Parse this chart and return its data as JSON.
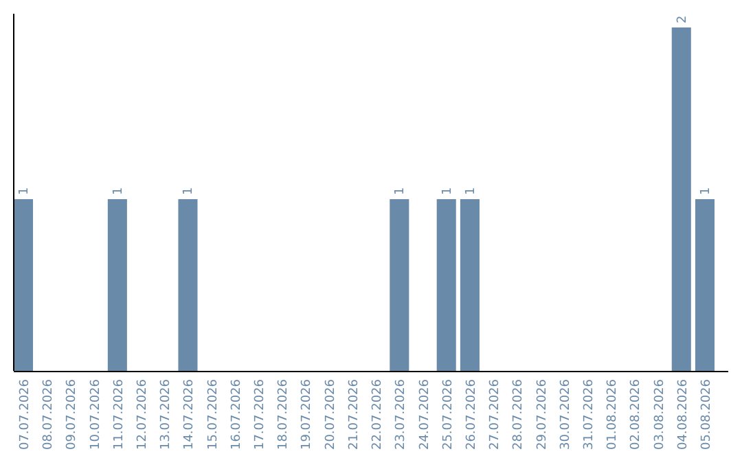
{
  "chart_data": {
    "type": "bar",
    "categories": [
      "07.07.2026",
      "08.07.2026",
      "09.07.2026",
      "10.07.2026",
      "11.07.2026",
      "12.07.2026",
      "13.07.2026",
      "14.07.2026",
      "15.07.2026",
      "16.07.2026",
      "17.07.2026",
      "18.07.2026",
      "19.07.2026",
      "20.07.2026",
      "21.07.2026",
      "22.07.2026",
      "23.07.2026",
      "24.07.2026",
      "25.07.2026",
      "26.07.2026",
      "27.07.2026",
      "28.07.2026",
      "29.07.2026",
      "30.07.2026",
      "31.07.2026",
      "01.08.2026",
      "02.08.2026",
      "03.08.2026",
      "04.08.2026",
      "05.08.2026"
    ],
    "values": [
      1,
      0,
      0,
      0,
      1,
      0,
      0,
      1,
      0,
      0,
      0,
      0,
      0,
      0,
      0,
      0,
      1,
      0,
      1,
      1,
      0,
      0,
      0,
      0,
      0,
      0,
      0,
      0,
      2,
      1
    ],
    "value_labels": [
      "1",
      null,
      null,
      null,
      "1",
      null,
      null,
      "1",
      null,
      null,
      null,
      null,
      null,
      null,
      null,
      null,
      "1",
      null,
      "1",
      "1",
      null,
      null,
      null,
      null,
      null,
      null,
      null,
      null,
      "2",
      "1"
    ],
    "color": "#6a8aaa",
    "tick_labels": "x"
  }
}
